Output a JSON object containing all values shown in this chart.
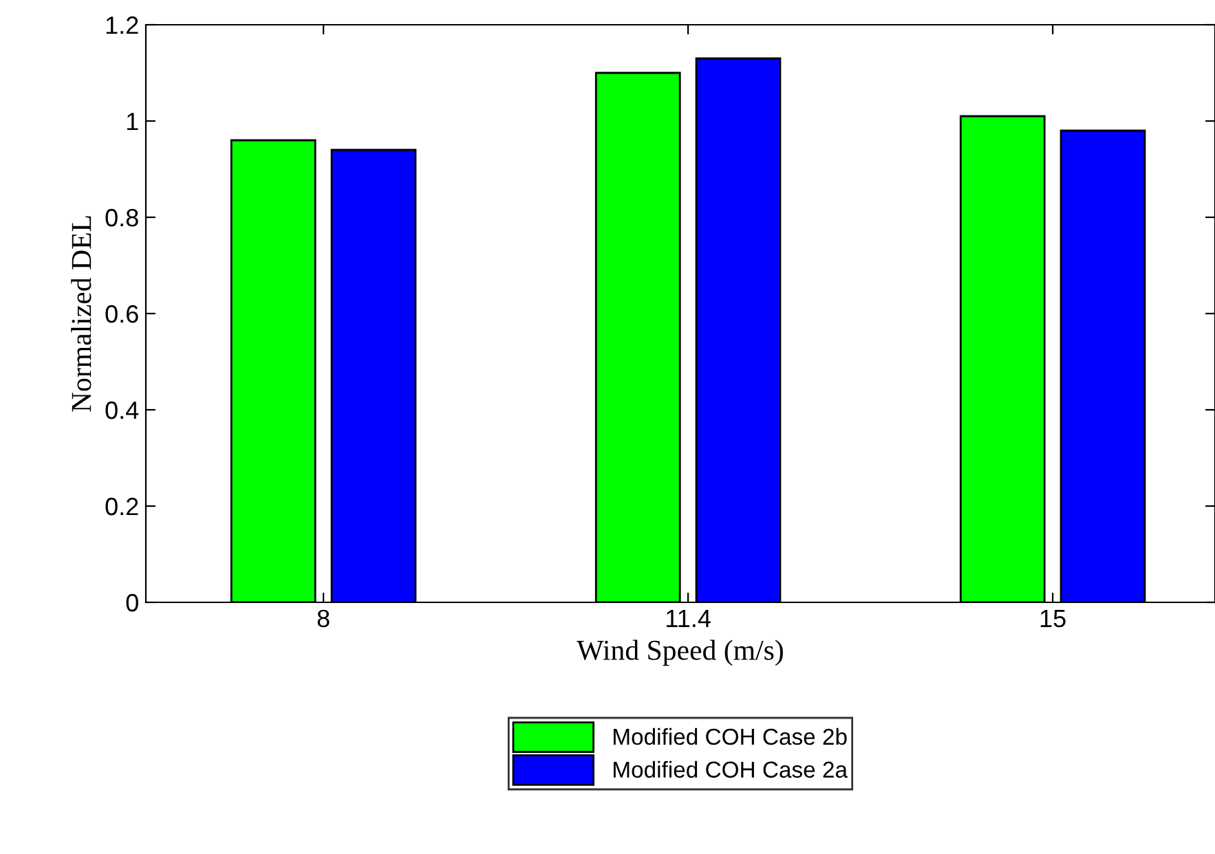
{
  "chart_data": {
    "type": "bar",
    "categories": [
      "8",
      "11.4",
      "15"
    ],
    "series": [
      {
        "name": "Modified COH Case 2b",
        "color": "#00ff00",
        "values": [
          0.96,
          1.1,
          1.01
        ]
      },
      {
        "name": "Modified COH Case 2a",
        "color": "#0000ff",
        "values": [
          0.94,
          1.13,
          0.98
        ]
      }
    ],
    "xlabel": "Wind Speed (m/s)",
    "ylabel": "Normalized DEL",
    "ylim": [
      0,
      1.2
    ],
    "yticks": [
      0,
      0.2,
      0.4,
      0.6,
      0.8,
      1,
      1.2
    ],
    "legend": "bottom",
    "grid": false
  }
}
